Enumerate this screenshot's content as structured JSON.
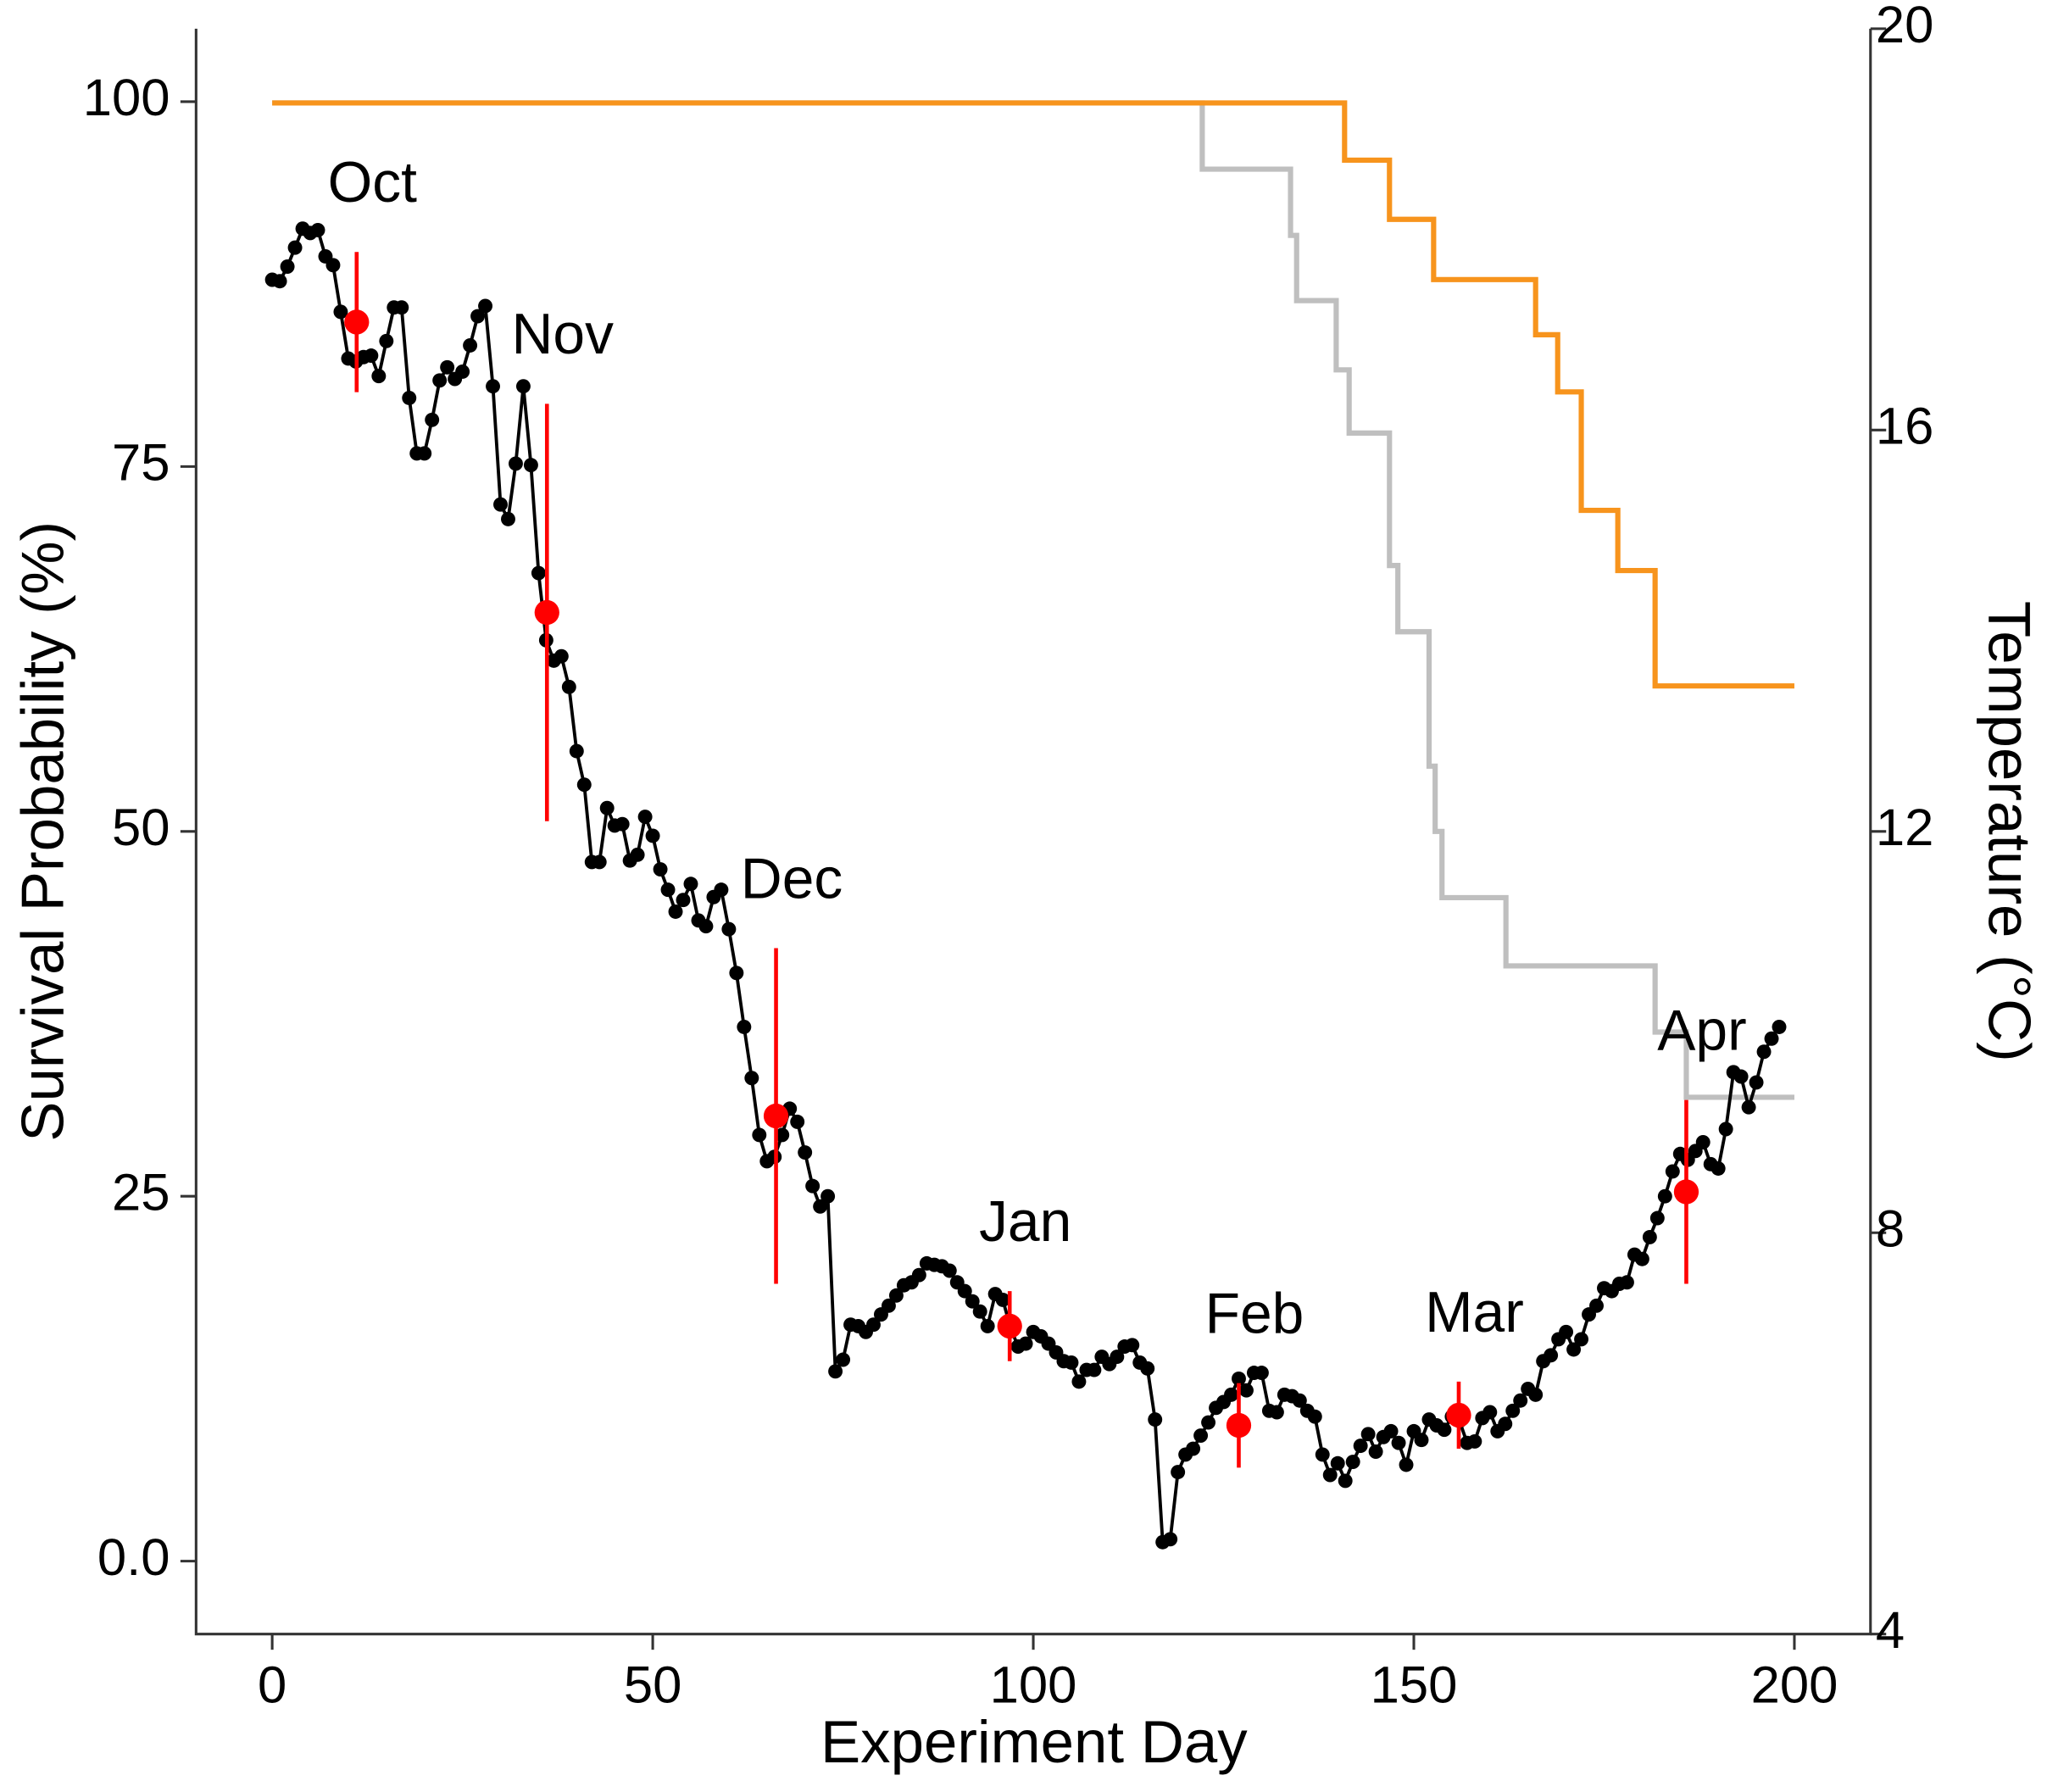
{
  "chart_data": {
    "type": "line",
    "xlabel": "Experiment Day",
    "ylabel": "Survival Probability (%)",
    "y2label": "Temperature (°C)",
    "xlim": [
      -10,
      210
    ],
    "ylim": [
      -5,
      105
    ],
    "y2lim": [
      4,
      20
    ],
    "xticks": [
      0,
      50,
      100,
      150,
      200
    ],
    "yticks": [
      {
        "value": 0,
        "label": "0.0"
      },
      25,
      50,
      75,
      100
    ],
    "y2ticks": [
      4,
      8,
      12,
      16,
      20
    ],
    "series": [
      {
        "type": "line",
        "color": "#bfbfbf",
        "axis": "y2",
        "step": "post",
        "x": [
          0,
          122.2,
          133.8,
          134.6,
          139.8,
          141.5,
          146.8,
          147.9,
          152,
          152.8,
          153.7,
          162.1,
          181.7,
          185.8,
          200
        ],
        "values": [
          19.26,
          18.6,
          17.94,
          17.29,
          16.6,
          15.97,
          14.65,
          13.99,
          12.65,
          12,
          11.34,
          10.66,
          10,
          9.35,
          9.35
        ]
      },
      {
        "type": "line",
        "color": "#f7941d",
        "axis": "y2",
        "step": "post",
        "x": [
          0,
          140.9,
          146.8,
          152.6,
          166,
          168.9,
          172,
          176.8,
          181.7,
          200
        ],
        "values": [
          19.26,
          18.69,
          18.1,
          17.5,
          16.95,
          16.38,
          15.2,
          14.6,
          13.45,
          13.45
        ]
      },
      {
        "type": "line",
        "color": "#000000",
        "markers": true,
        "x": [
          0,
          1,
          2,
          3,
          4,
          5,
          6,
          7,
          8,
          9,
          10,
          11,
          12,
          13,
          14,
          15,
          16,
          17,
          18,
          19,
          20,
          21,
          22,
          23,
          24,
          25,
          26,
          27,
          28,
          29,
          30,
          31,
          32,
          33,
          34,
          35,
          36,
          37,
          38,
          39,
          40,
          41,
          42,
          43,
          44,
          45,
          46,
          47,
          48,
          49,
          50,
          51,
          52,
          53,
          54,
          55,
          56,
          57,
          58,
          59,
          60,
          61,
          62,
          63,
          64,
          65,
          66,
          67,
          68,
          69,
          70,
          71,
          72,
          73,
          74,
          75,
          76,
          77,
          78,
          79,
          80,
          81,
          82,
          83,
          84,
          85,
          86,
          87,
          88,
          89,
          90,
          91,
          92,
          93,
          94,
          95,
          96,
          97,
          98,
          99,
          100,
          101,
          102,
          103,
          104,
          105,
          106,
          107,
          108,
          109,
          110,
          111,
          112,
          113,
          114,
          115,
          116,
          117,
          118,
          119,
          120,
          121,
          122,
          123,
          124,
          125,
          126,
          127,
          128,
          129,
          130,
          131,
          132,
          133,
          134,
          135,
          136,
          137,
          138,
          139,
          140,
          141,
          142,
          143,
          144,
          145,
          146,
          147,
          148,
          149,
          150,
          151,
          152,
          153,
          154,
          155,
          156,
          157,
          158,
          159,
          160,
          161,
          162,
          163,
          164,
          165,
          166,
          167,
          168,
          169,
          170,
          171,
          172,
          173,
          174,
          175,
          176,
          177,
          178,
          179,
          180,
          181,
          182,
          183,
          184,
          185,
          186,
          187,
          188,
          189,
          190,
          191,
          192,
          193,
          194,
          195,
          196,
          197,
          198
        ],
        "values": [
          87.8,
          87.7,
          88.7,
          90,
          91.3,
          91,
          91.2,
          89.4,
          88.8,
          85.6,
          82.4,
          82.2,
          82.5,
          82.6,
          81.2,
          83.6,
          85.9,
          85.9,
          79.7,
          75.9,
          75.9,
          78.2,
          80.9,
          81.8,
          81,
          81.5,
          83.3,
          85.3,
          86,
          80.5,
          72.4,
          71.4,
          75.2,
          80.5,
          75.1,
          67.7,
          63.1,
          61.7,
          62,
          59.9,
          55.5,
          53.2,
          47.9,
          47.9,
          51.6,
          50.4,
          50.5,
          48,
          48.4,
          51,
          49.7,
          47.4,
          46,
          44.5,
          45.3,
          46.4,
          43.9,
          43.5,
          45.5,
          46,
          43.3,
          40.3,
          36.6,
          33.1,
          29.2,
          27.4,
          27.7,
          29.2,
          31,
          30.1,
          28,
          25.7,
          24.3,
          25,
          13,
          13.8,
          16.2,
          16.1,
          15.7,
          16.2,
          16.9,
          17.5,
          18.2,
          18.9,
          19.1,
          19.6,
          20.4,
          20.3,
          20.2,
          19.9,
          19.1,
          18.5,
          17.8,
          17.1,
          16.1,
          18.3,
          17.9,
          16,
          14.7,
          14.9,
          15.7,
          15.4,
          14.9,
          14.3,
          13.7,
          13.6,
          12.3,
          13.1,
          13.1,
          14,
          13.5,
          14,
          14.7,
          14.8,
          13.6,
          13.2,
          9.7,
          1.3,
          1.5,
          6.1,
          7.3,
          7.7,
          8.6,
          9.5,
          10.5,
          10.9,
          11.4,
          12.5,
          11.7,
          12.9,
          12.9,
          10.3,
          10.2,
          11.4,
          11.3,
          11,
          10.3,
          9.9,
          7.3,
          5.9,
          6.7,
          5.5,
          6.8,
          7.9,
          8.7,
          7.5,
          8.5,
          8.9,
          8.1,
          6.6,
          8.9,
          8.3,
          9.7,
          9.3,
          9,
          9.9,
          9.6,
          8.1,
          8.2,
          9.8,
          10.2,
          8.9,
          9.4,
          10.3,
          11,
          11.8,
          11.4,
          13.7,
          14.1,
          15.2,
          15.7,
          14.5,
          15.2,
          16.9,
          17.5,
          18.7,
          18.5,
          19,
          19.1,
          21,
          20.7,
          22.2,
          23.5,
          25,
          26.7,
          27.9,
          27.5,
          28.1,
          28.7,
          27.2,
          26.9,
          29.6,
          33.5,
          33.2,
          31.1,
          32.8,
          34.9,
          35.8,
          36.6
        ]
      },
      {
        "type": "scatter",
        "color": "#ff0000",
        "x": [
          11.1,
          36.1,
          66.2,
          96.9,
          127,
          155.9,
          185.8
        ],
        "values": [
          84.9,
          65,
          30.5,
          16.1,
          9.3,
          10,
          25.3
        ],
        "errors": [
          4.8,
          14.3,
          11.5,
          2.4,
          2.9,
          2.3,
          6.3
        ],
        "labels": [
          "Oct",
          "Nov",
          "Dec",
          "Jan",
          "Feb",
          "Mar",
          "Apr"
        ]
      }
    ]
  }
}
